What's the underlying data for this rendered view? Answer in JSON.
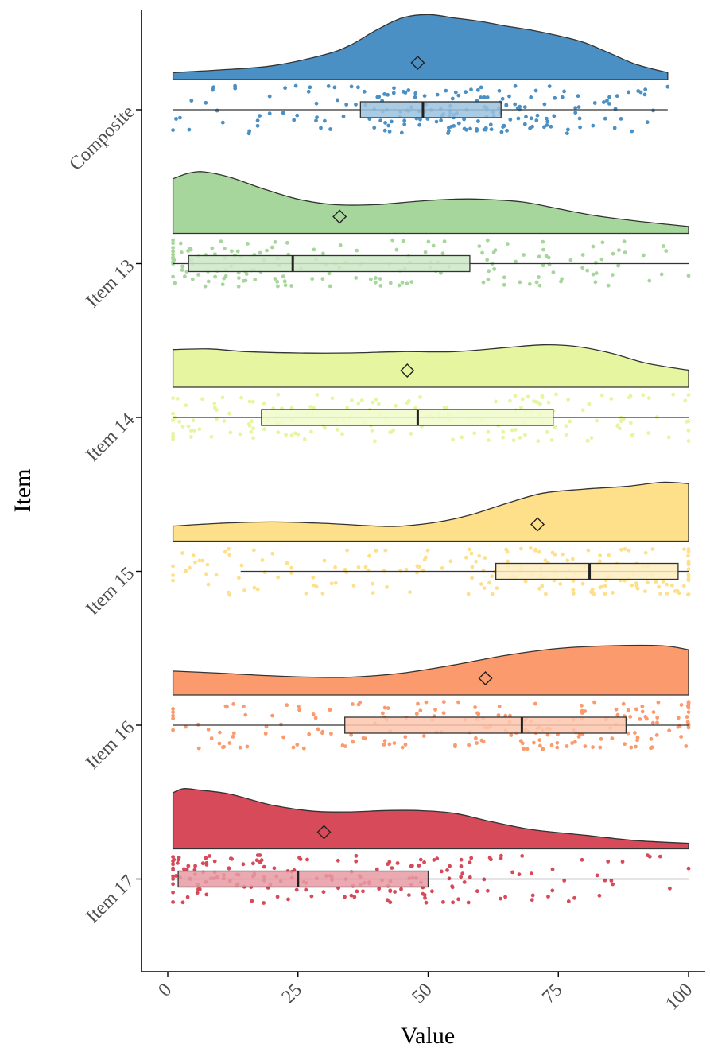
{
  "chart_data": {
    "type": "raincloud",
    "orientation": "horizontal",
    "title": "",
    "xlabel": "Value",
    "ylabel": "Item",
    "xlim": [
      0,
      100
    ],
    "xticks": [
      0,
      25,
      50,
      75,
      100
    ],
    "xtick_labels": [
      "0",
      "25",
      "50",
      "75",
      "100"
    ],
    "grid": false,
    "legend": "none",
    "categories": [
      "Composite",
      "Item 13",
      "Item 14",
      "Item 15",
      "Item 16",
      "Item 17"
    ],
    "series": [
      {
        "category": "Composite",
        "color": "#4a90c4",
        "box": {
          "whisker_low": 1,
          "q1": 37,
          "median": 49,
          "q3": 64,
          "whisker_high": 96
        },
        "mean": 48,
        "density": [
          [
            1,
            0.1
          ],
          [
            10,
            0.14
          ],
          [
            20,
            0.2
          ],
          [
            30,
            0.36
          ],
          [
            35,
            0.5
          ],
          [
            40,
            0.72
          ],
          [
            45,
            0.9
          ],
          [
            50,
            0.95
          ],
          [
            55,
            0.9
          ],
          [
            60,
            0.85
          ],
          [
            65,
            0.78
          ],
          [
            70,
            0.72
          ],
          [
            75,
            0.64
          ],
          [
            80,
            0.54
          ],
          [
            85,
            0.38
          ],
          [
            90,
            0.22
          ],
          [
            96,
            0.1
          ]
        ],
        "points_range": [
          1,
          96
        ],
        "n_points": 200
      },
      {
        "category": "Item 13",
        "color": "#a6d69b",
        "box": {
          "whisker_low": 1,
          "q1": 4,
          "median": 24,
          "q3": 58,
          "whisker_high": 100
        },
        "mean": 33,
        "density": [
          [
            1,
            0.8
          ],
          [
            4,
            0.88
          ],
          [
            7,
            0.9
          ],
          [
            12,
            0.82
          ],
          [
            18,
            0.66
          ],
          [
            25,
            0.5
          ],
          [
            32,
            0.42
          ],
          [
            40,
            0.42
          ],
          [
            48,
            0.47
          ],
          [
            55,
            0.5
          ],
          [
            60,
            0.5
          ],
          [
            68,
            0.46
          ],
          [
            75,
            0.36
          ],
          [
            82,
            0.26
          ],
          [
            90,
            0.18
          ],
          [
            100,
            0.1
          ]
        ],
        "points_range": [
          1,
          100
        ],
        "n_points": 170
      },
      {
        "category": "Item 14",
        "color": "#e6f5a0",
        "box": {
          "whisker_low": 1,
          "q1": 18,
          "median": 48,
          "q3": 74,
          "whisker_high": 100
        },
        "mean": 46,
        "density": [
          [
            1,
            0.55
          ],
          [
            8,
            0.56
          ],
          [
            15,
            0.52
          ],
          [
            25,
            0.5
          ],
          [
            35,
            0.5
          ],
          [
            45,
            0.52
          ],
          [
            55,
            0.52
          ],
          [
            65,
            0.58
          ],
          [
            72,
            0.62
          ],
          [
            78,
            0.6
          ],
          [
            85,
            0.5
          ],
          [
            92,
            0.35
          ],
          [
            100,
            0.25
          ]
        ],
        "points_range": [
          1,
          100
        ],
        "n_points": 170
      },
      {
        "category": "Item 15",
        "color": "#fee08b",
        "box": {
          "whisker_low": 14,
          "q1": 63,
          "median": 81,
          "q3": 98,
          "whisker_high": 100
        },
        "mean": 71,
        "density": [
          [
            1,
            0.22
          ],
          [
            10,
            0.26
          ],
          [
            20,
            0.28
          ],
          [
            30,
            0.26
          ],
          [
            40,
            0.22
          ],
          [
            45,
            0.22
          ],
          [
            52,
            0.28
          ],
          [
            58,
            0.38
          ],
          [
            65,
            0.55
          ],
          [
            72,
            0.7
          ],
          [
            80,
            0.76
          ],
          [
            88,
            0.8
          ],
          [
            95,
            0.86
          ],
          [
            100,
            0.84
          ]
        ],
        "points_range": [
          1,
          100
        ],
        "n_points": 180
      },
      {
        "category": "Item 16",
        "color": "#fb9a6c",
        "box": {
          "whisker_low": 1,
          "q1": 34,
          "median": 68,
          "q3": 88,
          "whisker_high": 100
        },
        "mean": 61,
        "density": [
          [
            1,
            0.35
          ],
          [
            10,
            0.32
          ],
          [
            20,
            0.28
          ],
          [
            28,
            0.26
          ],
          [
            35,
            0.26
          ],
          [
            45,
            0.32
          ],
          [
            55,
            0.44
          ],
          [
            65,
            0.58
          ],
          [
            75,
            0.68
          ],
          [
            85,
            0.72
          ],
          [
            95,
            0.72
          ],
          [
            100,
            0.66
          ]
        ],
        "points_range": [
          1,
          100
        ],
        "n_points": 190
      },
      {
        "category": "Item 17",
        "color": "#d64a5a",
        "box": {
          "whisker_low": 1,
          "q1": 2,
          "median": 25,
          "q3": 50,
          "whisker_high": 100
        },
        "mean": 30,
        "density": [
          [
            1,
            0.82
          ],
          [
            3,
            0.88
          ],
          [
            6,
            0.86
          ],
          [
            12,
            0.8
          ],
          [
            20,
            0.64
          ],
          [
            28,
            0.55
          ],
          [
            35,
            0.54
          ],
          [
            42,
            0.56
          ],
          [
            48,
            0.56
          ],
          [
            55,
            0.52
          ],
          [
            62,
            0.4
          ],
          [
            70,
            0.28
          ],
          [
            80,
            0.2
          ],
          [
            90,
            0.12
          ],
          [
            100,
            0.08
          ]
        ],
        "points_range": [
          1,
          100
        ],
        "n_points": 190
      }
    ]
  }
}
